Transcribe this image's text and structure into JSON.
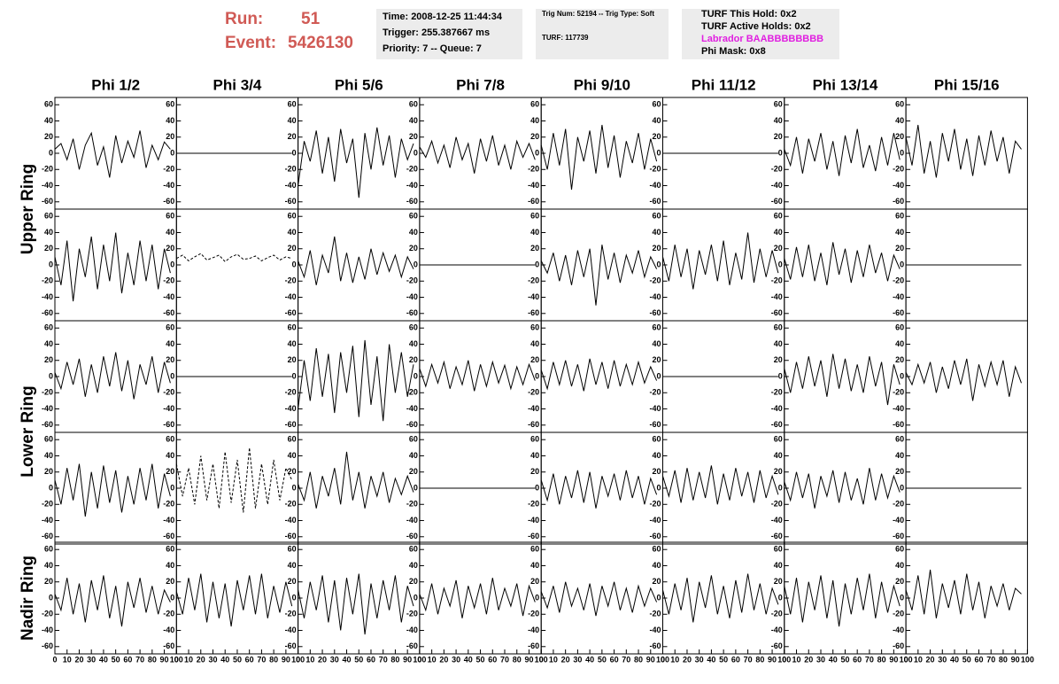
{
  "header": {
    "run_label": "Run:",
    "run": "51",
    "event_label": "Event:",
    "event": "5426130",
    "info": [
      [
        "Time: 2008-12-25 11:44:34",
        "Trigger: 255.387667 ms",
        "Priority: 7 -- Queue: 7"
      ],
      [
        "Trig Num: 52194 -- Trig Type: Soft",
        "TURF: 117739"
      ],
      [
        "TURF This Hold: 0x2",
        "TURF Active Holds: 0x2",
        "Labrador BAABBBBBBBB",
        "Phi Mask: 0x8"
      ]
    ]
  },
  "chart_data": {
    "type": "line",
    "color": "#000000",
    "columns": [
      "Phi 1/2",
      "Phi 3/4",
      "Phi 5/6",
      "Phi 7/8",
      "Phi 9/10",
      "Phi 11/12",
      "Phi 13/14",
      "Phi 15/16"
    ],
    "rings": [
      "Upper Ring",
      "Lower Ring",
      "Nadir Ring"
    ],
    "xlim": [
      0,
      100
    ],
    "xticks": [
      0,
      10,
      20,
      30,
      40,
      50,
      60,
      70,
      80,
      90,
      100
    ],
    "ylim": [
      -69,
      69
    ],
    "yticks": [
      -60,
      -40,
      -20,
      0,
      20,
      40,
      60
    ],
    "x": [
      0,
      5,
      10,
      15,
      20,
      25,
      30,
      35,
      40,
      45,
      50,
      55,
      60,
      65,
      70,
      75,
      80,
      85,
      90,
      95
    ],
    "panels": [
      [
        {
          "values": [
            5,
            12,
            -8,
            18,
            -20,
            10,
            25,
            -15,
            8,
            -30,
            22,
            -12,
            15,
            -5,
            28,
            -18,
            10,
            -8,
            14,
            5
          ]
        },
        {
          "values": [
            0,
            0,
            0,
            0,
            0,
            0,
            0,
            0,
            0,
            0,
            0,
            0,
            0,
            0,
            0,
            0,
            0,
            0,
            0,
            0
          ]
        },
        {
          "values": [
            -40,
            15,
            -10,
            28,
            -25,
            20,
            -35,
            30,
            -12,
            18,
            -55,
            25,
            -20,
            32,
            -15,
            22,
            -30,
            18,
            -8,
            12
          ]
        },
        {
          "values": [
            8,
            -5,
            15,
            -12,
            10,
            -18,
            20,
            -8,
            12,
            -25,
            18,
            -10,
            22,
            -15,
            10,
            -20,
            15,
            -5,
            12,
            -8
          ]
        },
        {
          "values": [
            10,
            -20,
            25,
            -15,
            30,
            -45,
            20,
            -10,
            28,
            -25,
            35,
            -18,
            22,
            -30,
            15,
            -12,
            25,
            -20,
            18,
            -10
          ]
        },
        {
          "values": [
            0,
            0,
            0,
            0,
            0,
            0,
            0,
            0,
            0,
            0,
            0,
            0,
            0,
            0,
            0,
            0,
            0,
            0,
            0,
            0
          ]
        },
        {
          "values": [
            5,
            -15,
            20,
            -25,
            18,
            -10,
            25,
            -20,
            15,
            -28,
            22,
            -12,
            30,
            -18,
            10,
            -22,
            20,
            -15,
            25,
            -8
          ]
        },
        {
          "values": [
            20,
            -15,
            35,
            -25,
            15,
            -30,
            25,
            -10,
            30,
            -20,
            18,
            -28,
            22,
            -15,
            28,
            -10,
            20,
            -25,
            15,
            5
          ]
        }
      ],
      [
        {
          "values": [
            10,
            -25,
            30,
            -45,
            20,
            -15,
            35,
            -30,
            25,
            -20,
            40,
            -35,
            15,
            -25,
            30,
            -20,
            25,
            -30,
            20,
            -10
          ]
        },
        {
          "values": [
            8,
            12,
            5,
            10,
            14,
            6,
            9,
            12,
            4,
            10,
            13,
            7,
            8,
            11,
            5,
            9,
            12,
            6,
            10,
            8
          ],
          "style": "dashed"
        },
        {
          "values": [
            5,
            -15,
            18,
            -25,
            12,
            -10,
            35,
            -20,
            15,
            -22,
            10,
            -18,
            20,
            -12,
            15,
            -8,
            12,
            -15,
            10,
            -5
          ]
        },
        {
          "values": [
            0,
            0,
            0,
            0,
            0,
            0,
            0,
            0,
            0,
            0,
            0,
            0,
            0,
            0,
            0,
            0,
            0,
            0,
            0,
            0
          ]
        },
        {
          "values": [
            5,
            -10,
            15,
            -20,
            12,
            -25,
            18,
            -15,
            20,
            -50,
            25,
            -18,
            15,
            -22,
            12,
            -10,
            18,
            -15,
            10,
            -5
          ]
        },
        {
          "values": [
            10,
            -20,
            25,
            -15,
            20,
            -30,
            18,
            -12,
            25,
            -20,
            30,
            -25,
            15,
            -18,
            40,
            -22,
            20,
            -15,
            18,
            -10
          ]
        },
        {
          "values": [
            8,
            -18,
            22,
            -15,
            25,
            -20,
            15,
            -25,
            28,
            -12,
            20,
            -22,
            18,
            -15,
            25,
            -10,
            15,
            -20,
            12,
            -5
          ]
        },
        {
          "values": [
            0,
            0,
            0,
            0,
            0,
            0,
            0,
            0,
            0,
            0,
            0,
            0,
            0,
            0,
            0,
            0,
            0,
            0,
            0,
            0
          ]
        }
      ],
      [
        {
          "values": [
            5,
            -15,
            18,
            -10,
            22,
            -25,
            15,
            -20,
            25,
            -12,
            30,
            -18,
            20,
            -28,
            15,
            -10,
            25,
            -20,
            18,
            -8
          ]
        },
        {
          "values": [
            0,
            0,
            0,
            0,
            0,
            0,
            0,
            0,
            0,
            0,
            0,
            0,
            0,
            0,
            0,
            0,
            0,
            0,
            0,
            0
          ]
        },
        {
          "values": [
            -40,
            20,
            -30,
            35,
            -25,
            28,
            -45,
            30,
            -20,
            38,
            -50,
            45,
            -35,
            25,
            -55,
            40,
            -20,
            30,
            -25,
            15
          ]
        },
        {
          "values": [
            10,
            -12,
            15,
            -8,
            18,
            -15,
            12,
            -10,
            20,
            -18,
            15,
            -12,
            18,
            -8,
            14,
            -15,
            12,
            -10,
            15,
            -5
          ]
        },
        {
          "values": [
            8,
            -15,
            18,
            -10,
            20,
            -12,
            15,
            -18,
            22,
            -10,
            18,
            -15,
            20,
            -12,
            15,
            -10,
            18,
            -8,
            12,
            -5
          ]
        },
        {
          "values": [
            0,
            0,
            0,
            0,
            0,
            0,
            0,
            0,
            0,
            0,
            0,
            0,
            0,
            0,
            0,
            0,
            0,
            0,
            0,
            0
          ]
        },
        {
          "values": [
            10,
            -20,
            18,
            -15,
            25,
            -12,
            20,
            -25,
            28,
            -15,
            22,
            -18,
            15,
            -20,
            25,
            -12,
            18,
            -35,
            15,
            -10
          ]
        },
        {
          "values": [
            5,
            -10,
            15,
            -8,
            18,
            -20,
            12,
            -15,
            20,
            -10,
            22,
            -30,
            15,
            -12,
            18,
            -10,
            20,
            -25,
            12,
            -8
          ]
        }
      ],
      [
        {
          "values": [
            10,
            -20,
            25,
            -15,
            30,
            -35,
            20,
            -25,
            28,
            -18,
            22,
            -30,
            15,
            -20,
            25,
            -15,
            30,
            -25,
            18,
            -10
          ]
        },
        {
          "values": [
            30,
            -10,
            25,
            -20,
            40,
            -15,
            30,
            -25,
            45,
            -18,
            35,
            -30,
            50,
            -25,
            30,
            -20,
            35,
            -15,
            25,
            10
          ],
          "style": "dashed"
        },
        {
          "values": [
            5,
            -15,
            20,
            -25,
            15,
            -10,
            25,
            -20,
            45,
            -15,
            20,
            -25,
            15,
            -10,
            20,
            -18,
            12,
            -8,
            15,
            -5
          ]
        },
        {
          "values": [
            0,
            0,
            0,
            0,
            0,
            0,
            0,
            0,
            0,
            0,
            0,
            0,
            0,
            0,
            0,
            0,
            0,
            0,
            0,
            0
          ]
        },
        {
          "values": [
            10,
            -15,
            18,
            -20,
            15,
            -12,
            22,
            -18,
            20,
            -25,
            15,
            -10,
            18,
            -15,
            22,
            -12,
            15,
            -20,
            12,
            -8
          ]
        },
        {
          "values": [
            15,
            -10,
            22,
            -18,
            25,
            -15,
            20,
            -12,
            28,
            -20,
            18,
            -15,
            25,
            -10,
            20,
            -18,
            22,
            -12,
            15,
            -8
          ]
        },
        {
          "values": [
            8,
            -15,
            20,
            -12,
            18,
            -25,
            15,
            -10,
            22,
            -18,
            20,
            -15,
            12,
            -20,
            25,
            -15,
            18,
            -12,
            15,
            -5
          ]
        },
        {
          "values": [
            0,
            0,
            0,
            0,
            0,
            0,
            0,
            0,
            0,
            0,
            0,
            0,
            0,
            0,
            0,
            0,
            0,
            0,
            0,
            0
          ]
        }
      ],
      [
        {
          "values": [
            5,
            -15,
            25,
            -20,
            18,
            -30,
            22,
            -15,
            28,
            -25,
            15,
            -35,
            20,
            -12,
            25,
            -18,
            15,
            -20,
            10,
            -5
          ]
        },
        {
          "values": [
            8,
            -20,
            25,
            -15,
            30,
            -30,
            20,
            -25,
            18,
            -35,
            22,
            -15,
            28,
            -20,
            30,
            -25,
            15,
            -18,
            20,
            -10
          ]
        },
        {
          "values": [
            10,
            -25,
            20,
            -15,
            28,
            -30,
            22,
            -40,
            25,
            -20,
            30,
            -45,
            18,
            -25,
            22,
            -15,
            28,
            -30,
            15,
            -10
          ]
        },
        {
          "values": [
            5,
            -15,
            18,
            -20,
            12,
            -10,
            22,
            -25,
            15,
            -12,
            18,
            -20,
            25,
            -15,
            12,
            -10,
            18,
            -22,
            15,
            -5
          ]
        },
        {
          "values": [
            8,
            -12,
            15,
            -18,
            20,
            -10,
            12,
            -15,
            18,
            -22,
            15,
            -10,
            20,
            -15,
            12,
            -18,
            15,
            -10,
            12,
            -5
          ]
        },
        {
          "values": [
            10,
            -20,
            18,
            -15,
            25,
            -30,
            20,
            -12,
            28,
            -20,
            15,
            -25,
            22,
            -18,
            30,
            -15,
            18,
            -20,
            12,
            -8
          ]
        },
        {
          "values": [
            15,
            -20,
            25,
            -30,
            20,
            -15,
            28,
            -25,
            22,
            -35,
            18,
            -20,
            25,
            -15,
            30,
            -25,
            20,
            -18,
            15,
            -10
          ]
        },
        {
          "values": [
            10,
            -15,
            28,
            -20,
            35,
            -25,
            18,
            -12,
            22,
            -20,
            30,
            -15,
            20,
            -25,
            15,
            -10,
            18,
            -15,
            12,
            5
          ]
        }
      ]
    ]
  }
}
